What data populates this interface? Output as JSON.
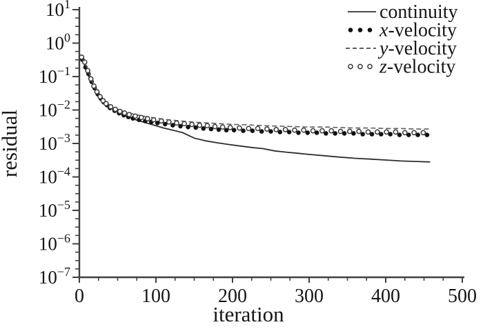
{
  "page": {
    "background": "#ffffff"
  },
  "chart_data": {
    "type": "line",
    "title": "",
    "xlabel": "iteration",
    "ylabel": "residual",
    "xlim": [
      0,
      500
    ],
    "x_ticks": [
      0,
      100,
      200,
      300,
      400,
      500
    ],
    "x_minor_tick_step": 25,
    "y_scale": "log",
    "ylim": [
      1e-07,
      10
    ],
    "y_tick_exponents": [
      1,
      0,
      -1,
      -2,
      -3,
      -4,
      -5,
      -6,
      -7
    ],
    "y_minor_ticks_per_decade": 3,
    "grid": false,
    "legend_position": "top-right",
    "colors": {
      "axis": "#3f3f3f",
      "text": "#161616",
      "solid_line": "#2c2c2c",
      "dashed_line": "#5f5f5f",
      "dot_fill": "#121212",
      "circle_stroke": "#3a3a3a"
    },
    "legend": [
      {
        "label": "continuity",
        "italic_char": "",
        "rest": "continuity",
        "marker": "solid-line"
      },
      {
        "label": "x-velocity",
        "italic_char": "x",
        "rest": "-velocity",
        "marker": "filled-dots"
      },
      {
        "label": "y-velocity",
        "italic_char": "y",
        "rest": "-velocity",
        "marker": "dashed-line"
      },
      {
        "label": "z-velocity",
        "italic_char": "z",
        "rest": "-velocity",
        "marker": "open-circles"
      }
    ],
    "series": [
      {
        "name": "continuity",
        "style": "solid-line",
        "points": [
          [
            3,
            0.28
          ],
          [
            5,
            0.33
          ],
          [
            8,
            0.17
          ],
          [
            12,
            0.105
          ],
          [
            16,
            0.068
          ],
          [
            20,
            0.045
          ],
          [
            25,
            0.029
          ],
          [
            30,
            0.02
          ],
          [
            36,
            0.0145
          ],
          [
            42,
            0.011
          ],
          [
            50,
            0.0085
          ],
          [
            58,
            0.007
          ],
          [
            66,
            0.0059
          ],
          [
            76,
            0.0049
          ],
          [
            86,
            0.0042
          ],
          [
            98,
            0.0035
          ],
          [
            110,
            0.0029
          ],
          [
            122,
            0.0025
          ],
          [
            135,
            0.0021
          ],
          [
            150,
            0.00145
          ],
          [
            165,
            0.0012
          ],
          [
            180,
            0.00105
          ],
          [
            195,
            0.00093
          ],
          [
            210,
            0.00084
          ],
          [
            225,
            0.00076
          ],
          [
            240,
            0.0007
          ],
          [
            255,
            0.0006
          ],
          [
            270,
            0.00055
          ],
          [
            285,
            0.00051
          ],
          [
            300,
            0.00047
          ],
          [
            320,
            0.00043
          ],
          [
            340,
            0.00039
          ],
          [
            360,
            0.00036
          ],
          [
            380,
            0.00034
          ],
          [
            400,
            0.00032
          ],
          [
            420,
            0.0003
          ],
          [
            440,
            0.00029
          ],
          [
            458,
            0.00028
          ]
        ]
      },
      {
        "name": "x-velocity",
        "style": "filled-dots",
        "points": [
          [
            4,
            0.32
          ],
          [
            8,
            0.19
          ],
          [
            12,
            0.12
          ],
          [
            16,
            0.07
          ],
          [
            20,
            0.045
          ],
          [
            24,
            0.03
          ],
          [
            28,
            0.022
          ],
          [
            32,
            0.017
          ],
          [
            36,
            0.014
          ],
          [
            40,
            0.0115
          ],
          [
            46,
            0.0095
          ],
          [
            52,
            0.008
          ],
          [
            58,
            0.007
          ],
          [
            64,
            0.0062
          ],
          [
            70,
            0.0056
          ],
          [
            78,
            0.0051
          ],
          [
            86,
            0.0047
          ],
          [
            94,
            0.0044
          ],
          [
            102,
            0.0041
          ],
          [
            112,
            0.0038
          ],
          [
            122,
            0.0035
          ],
          [
            132,
            0.0033
          ],
          [
            142,
            0.0031
          ],
          [
            152,
            0.003
          ],
          [
            162,
            0.0028
          ],
          [
            172,
            0.0027
          ],
          [
            182,
            0.0026
          ],
          [
            192,
            0.0025
          ],
          [
            202,
            0.0025
          ],
          [
            214,
            0.0024
          ],
          [
            226,
            0.0024
          ],
          [
            238,
            0.0023
          ],
          [
            250,
            0.0023
          ],
          [
            262,
            0.0022
          ],
          [
            274,
            0.0022
          ],
          [
            286,
            0.0021
          ],
          [
            298,
            0.0021
          ],
          [
            310,
            0.0021
          ],
          [
            322,
            0.002
          ],
          [
            334,
            0.002
          ],
          [
            346,
            0.002
          ],
          [
            358,
            0.002
          ],
          [
            370,
            0.0019
          ],
          [
            382,
            0.0019
          ],
          [
            394,
            0.0019
          ],
          [
            406,
            0.0019
          ],
          [
            418,
            0.0018
          ],
          [
            430,
            0.0018
          ],
          [
            442,
            0.0018
          ],
          [
            454,
            0.0018
          ]
        ]
      },
      {
        "name": "y-velocity",
        "style": "dashed-line",
        "points": [
          [
            3,
            0.34
          ],
          [
            6,
            0.3
          ],
          [
            10,
            0.19
          ],
          [
            15,
            0.09
          ],
          [
            20,
            0.05
          ],
          [
            25,
            0.032
          ],
          [
            30,
            0.022
          ],
          [
            36,
            0.016
          ],
          [
            42,
            0.0128
          ],
          [
            50,
            0.0105
          ],
          [
            58,
            0.009
          ],
          [
            66,
            0.008
          ],
          [
            76,
            0.0071
          ],
          [
            86,
            0.0064
          ],
          [
            98,
            0.0058
          ],
          [
            110,
            0.0053
          ],
          [
            124,
            0.0049
          ],
          [
            138,
            0.0046
          ],
          [
            152,
            0.0043
          ],
          [
            168,
            0.0041
          ],
          [
            184,
            0.0039
          ],
          [
            200,
            0.0037
          ],
          [
            220,
            0.0036
          ],
          [
            240,
            0.0034
          ],
          [
            260,
            0.0033
          ],
          [
            280,
            0.0032
          ],
          [
            300,
            0.0031
          ],
          [
            320,
            0.0031
          ],
          [
            340,
            0.003
          ],
          [
            360,
            0.0029
          ],
          [
            380,
            0.0029
          ],
          [
            400,
            0.0028
          ],
          [
            420,
            0.0028
          ],
          [
            440,
            0.0027
          ],
          [
            458,
            0.0027
          ]
        ]
      },
      {
        "name": "z-velocity",
        "style": "open-circles",
        "points": [
          [
            3,
            0.38
          ],
          [
            7,
            0.27
          ],
          [
            11,
            0.15
          ],
          [
            15,
            0.085
          ],
          [
            19,
            0.052
          ],
          [
            23,
            0.035
          ],
          [
            27,
            0.025
          ],
          [
            31,
            0.019
          ],
          [
            35,
            0.0155
          ],
          [
            41,
            0.0125
          ],
          [
            47,
            0.0105
          ],
          [
            53,
            0.0091
          ],
          [
            59,
            0.0081
          ],
          [
            65,
            0.0073
          ],
          [
            73,
            0.0066
          ],
          [
            81,
            0.006
          ],
          [
            89,
            0.0055
          ],
          [
            97,
            0.0051
          ],
          [
            107,
            0.0047
          ],
          [
            117,
            0.0044
          ],
          [
            127,
            0.0041
          ],
          [
            137,
            0.0039
          ],
          [
            147,
            0.0037
          ],
          [
            157,
            0.0035
          ],
          [
            167,
            0.0034
          ],
          [
            177,
            0.0032
          ],
          [
            187,
            0.0031
          ],
          [
            197,
            0.003
          ],
          [
            209,
            0.0029
          ],
          [
            221,
            0.0028
          ],
          [
            233,
            0.0028
          ],
          [
            245,
            0.0027
          ],
          [
            257,
            0.0026
          ],
          [
            269,
            0.0026
          ],
          [
            281,
            0.0025
          ],
          [
            293,
            0.0025
          ],
          [
            305,
            0.0024
          ],
          [
            317,
            0.0024
          ],
          [
            329,
            0.0024
          ],
          [
            341,
            0.0023
          ],
          [
            353,
            0.0023
          ],
          [
            365,
            0.0023
          ],
          [
            377,
            0.0022
          ],
          [
            389,
            0.0022
          ],
          [
            401,
            0.0022
          ],
          [
            413,
            0.0022
          ],
          [
            425,
            0.0021
          ],
          [
            437,
            0.0021
          ],
          [
            449,
            0.0021
          ]
        ]
      }
    ]
  }
}
